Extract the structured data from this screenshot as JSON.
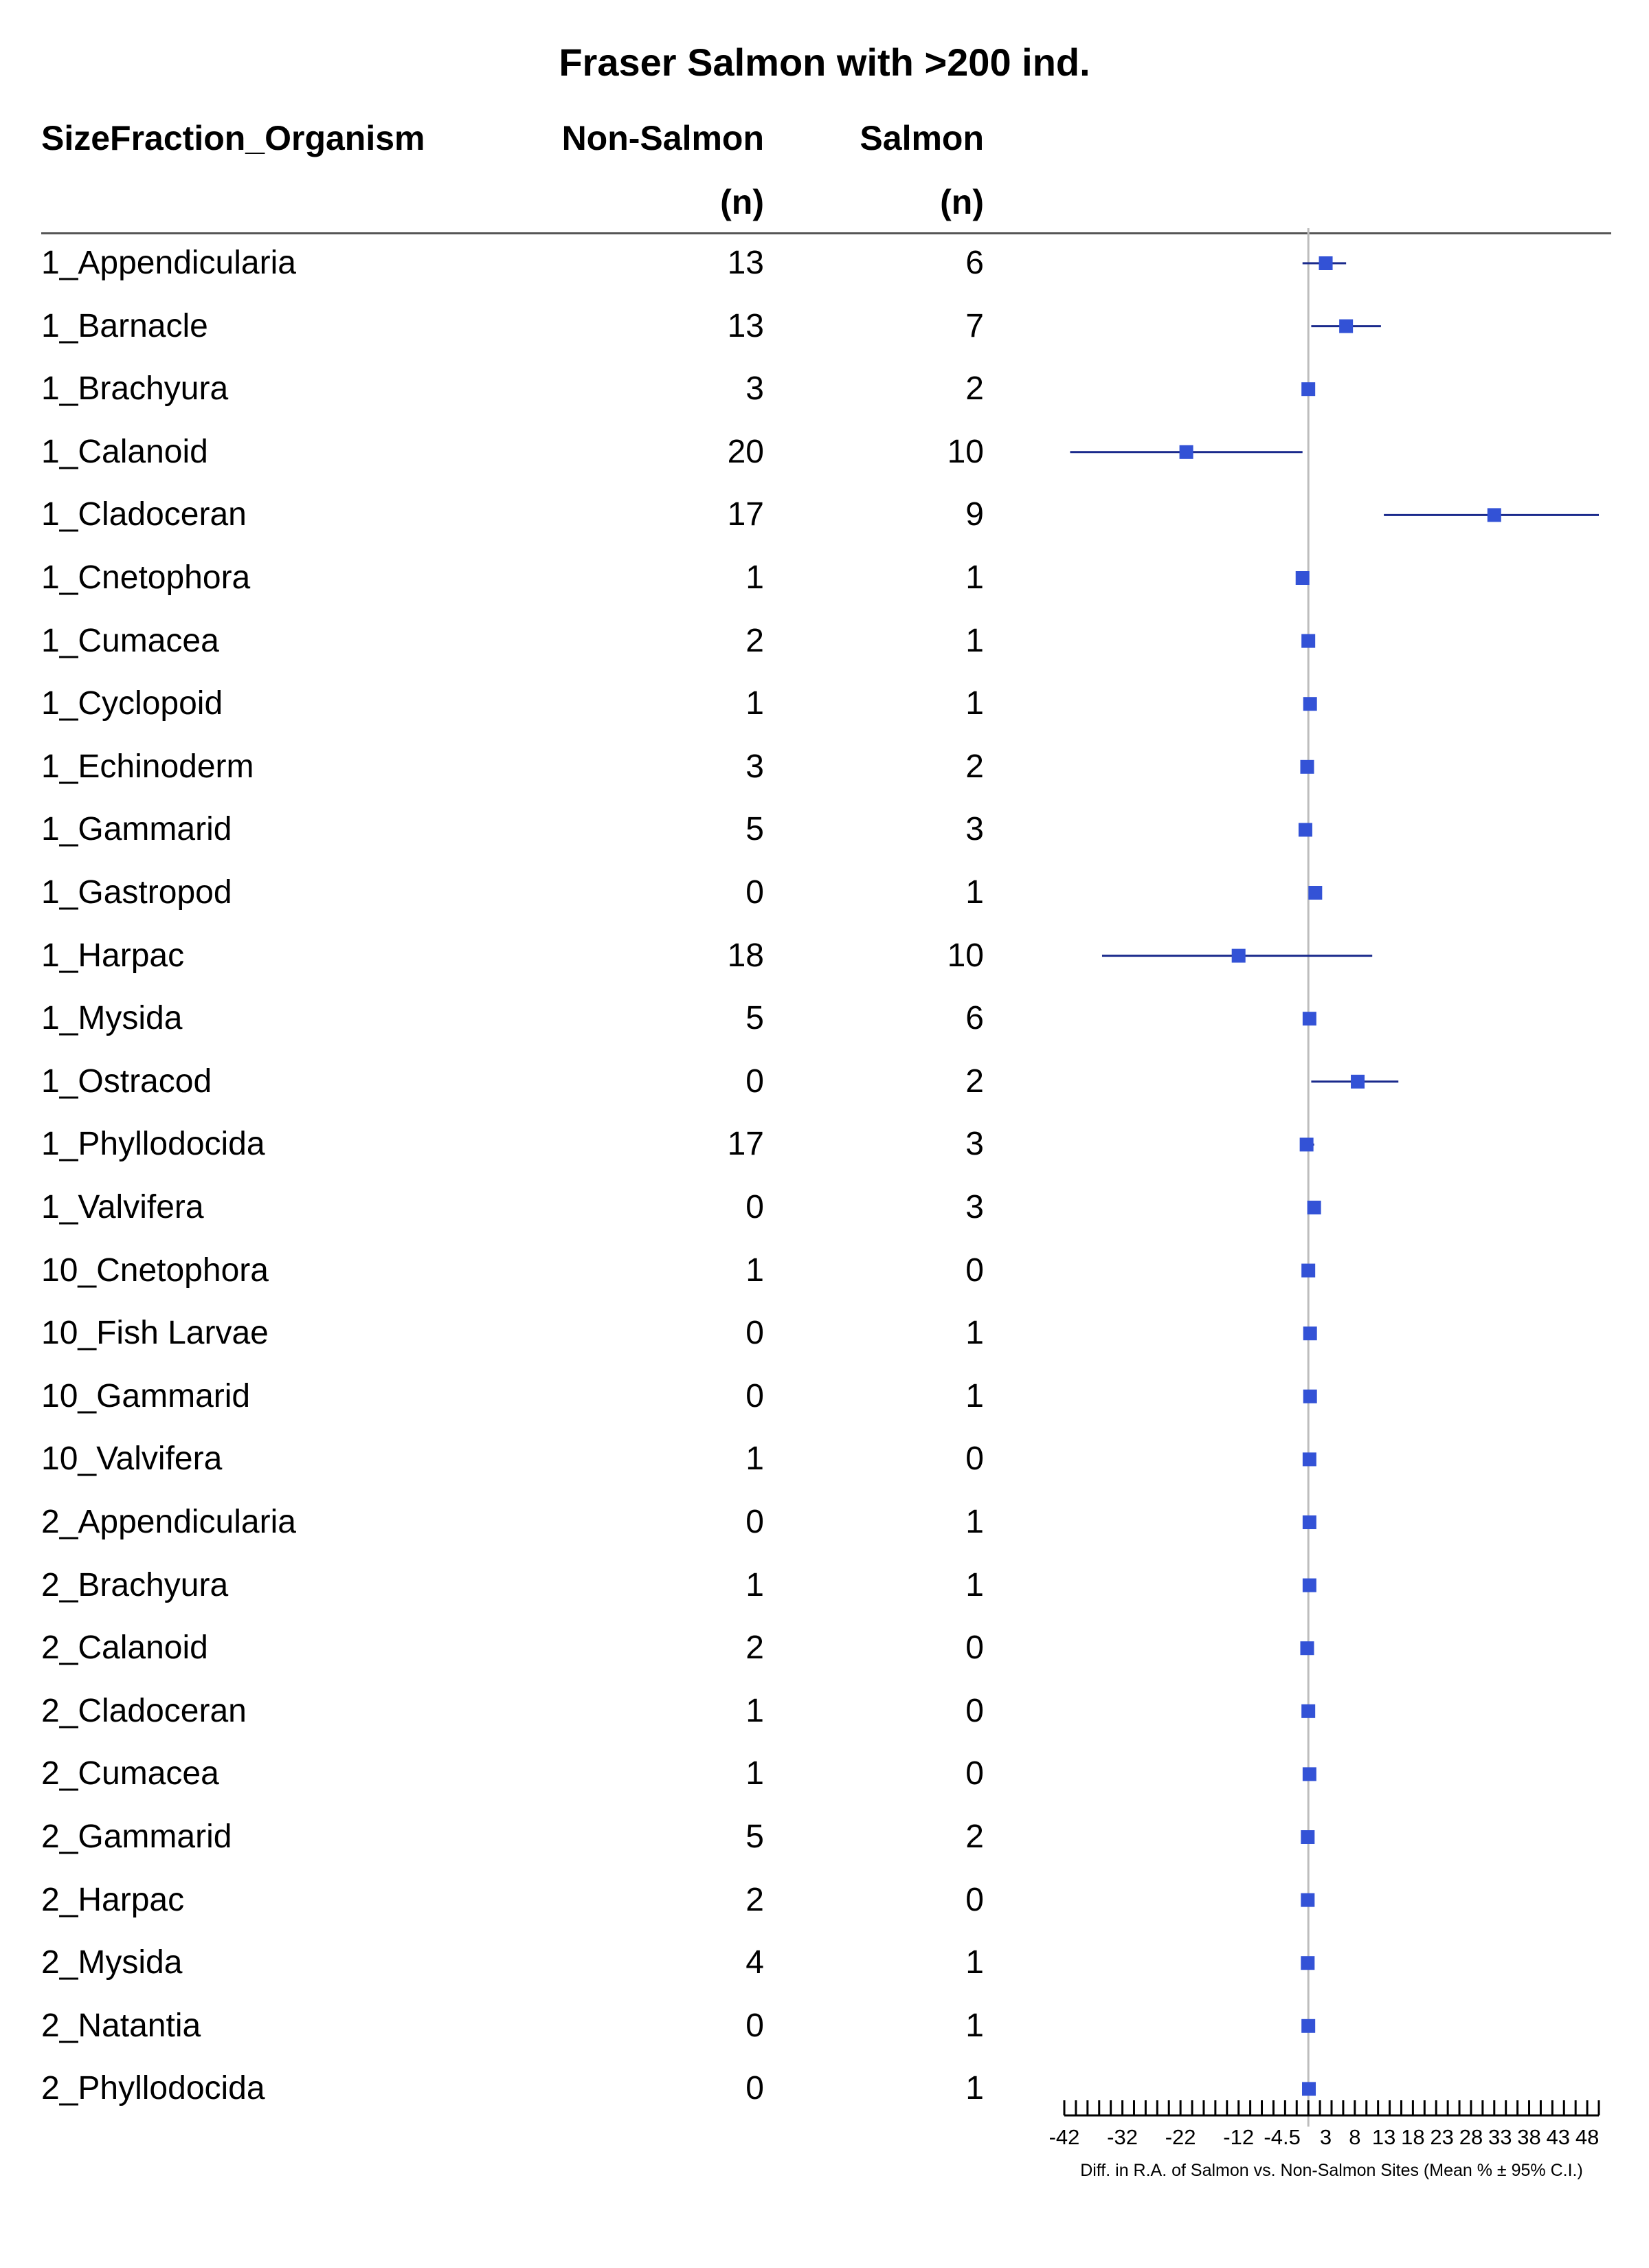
{
  "chart_data": {
    "type": "forest",
    "title": "Fraser Salmon with >200 ind.",
    "columns": {
      "name": "SizeFraction_Organism",
      "non_salmon": "Non-Salmon",
      "salmon": "Salmon",
      "n_label": "(n)"
    },
    "xlabel": "Diff. in R.A. of Salmon vs. Non-Salmon Sites (Mean % ± 95% C.I.)",
    "xlim": [
      -42,
      50
    ],
    "zero_line": 0,
    "tick_labels": [
      "-42",
      "-32",
      "-22",
      "-12",
      "-4.5",
      "3",
      "8",
      "13",
      "18",
      "23",
      "28",
      "33",
      "38",
      "43",
      "48"
    ],
    "tick_values": [
      -42,
      -32,
      -22,
      -12,
      -4.5,
      3,
      8,
      13,
      18,
      23,
      28,
      33,
      38,
      43,
      48
    ],
    "minor_tick_step": 2,
    "rows": [
      {
        "name": "1_Appendicularia",
        "non_salmon": "13",
        "salmon": "6",
        "mean": 3,
        "lo": -1,
        "hi": 6.5
      },
      {
        "name": "1_Barnacle",
        "non_salmon": "13",
        "salmon": "7",
        "mean": 6.5,
        "lo": 0.5,
        "hi": 12.5
      },
      {
        "name": "1_Brachyura",
        "non_salmon": "3",
        "salmon": "2",
        "mean": 0,
        "lo": null,
        "hi": null
      },
      {
        "name": "1_Calanoid",
        "non_salmon": "20",
        "salmon": "10",
        "mean": -21,
        "lo": -41,
        "hi": -1
      },
      {
        "name": "1_Cladoceran",
        "non_salmon": "17",
        "salmon": "9",
        "mean": 32,
        "lo": 13,
        "hi": 50
      },
      {
        "name": "1_Cnetophora",
        "non_salmon": "1",
        "salmon": "1",
        "mean": -1,
        "lo": null,
        "hi": null
      },
      {
        "name": "1_Cumacea",
        "non_salmon": "2",
        "salmon": "1",
        "mean": 0,
        "lo": null,
        "hi": null
      },
      {
        "name": "1_Cyclopoid",
        "non_salmon": "1",
        "salmon": "1",
        "mean": 0.3,
        "lo": null,
        "hi": null
      },
      {
        "name": "1_Echinoderm",
        "non_salmon": "3",
        "salmon": "2",
        "mean": -0.2,
        "lo": null,
        "hi": null
      },
      {
        "name": "1_Gammarid",
        "non_salmon": "5",
        "salmon": "3",
        "mean": -0.5,
        "lo": null,
        "hi": null
      },
      {
        "name": "1_Gastropod",
        "non_salmon": "0",
        "salmon": "1",
        "mean": 1.2,
        "lo": null,
        "hi": null
      },
      {
        "name": "1_Harpac",
        "non_salmon": "18",
        "salmon": "10",
        "mean": -12,
        "lo": -35.5,
        "hi": 11
      },
      {
        "name": "1_Mysida",
        "non_salmon": "5",
        "salmon": "6",
        "mean": 0.2,
        "lo": null,
        "hi": null
      },
      {
        "name": "1_Ostracod",
        "non_salmon": "0",
        "salmon": "2",
        "mean": 8.5,
        "lo": 0.5,
        "hi": 15.5
      },
      {
        "name": "1_Phyllodocida",
        "non_salmon": "17",
        "salmon": "3",
        "mean": -0.3,
        "lo": -1,
        "hi": 1
      },
      {
        "name": "1_Valvifera",
        "non_salmon": "0",
        "salmon": "3",
        "mean": 1,
        "lo": null,
        "hi": null
      },
      {
        "name": "10_Cnetophora",
        "non_salmon": "1",
        "salmon": "0",
        "mean": 0,
        "lo": null,
        "hi": null
      },
      {
        "name": "10_Fish Larvae",
        "non_salmon": "0",
        "salmon": "1",
        "mean": 0.3,
        "lo": null,
        "hi": null
      },
      {
        "name": "10_Gammarid",
        "non_salmon": "0",
        "salmon": "1",
        "mean": 0.3,
        "lo": null,
        "hi": null
      },
      {
        "name": "10_Valvifera",
        "non_salmon": "1",
        "salmon": "0",
        "mean": 0.2,
        "lo": null,
        "hi": null
      },
      {
        "name": "2_Appendicularia",
        "non_salmon": "0",
        "salmon": "1",
        "mean": 0.2,
        "lo": null,
        "hi": null
      },
      {
        "name": "2_Brachyura",
        "non_salmon": "1",
        "salmon": "1",
        "mean": 0.2,
        "lo": null,
        "hi": null
      },
      {
        "name": "2_Calanoid",
        "non_salmon": "2",
        "salmon": "0",
        "mean": -0.2,
        "lo": null,
        "hi": null
      },
      {
        "name": "2_Cladoceran",
        "non_salmon": "1",
        "salmon": "0",
        "mean": 0,
        "lo": null,
        "hi": null
      },
      {
        "name": "2_Cumacea",
        "non_salmon": "1",
        "salmon": "0",
        "mean": 0.2,
        "lo": null,
        "hi": null
      },
      {
        "name": "2_Gammarid",
        "non_salmon": "5",
        "salmon": "2",
        "mean": -0.1,
        "lo": null,
        "hi": null
      },
      {
        "name": "2_Harpac",
        "non_salmon": "2",
        "salmon": "0",
        "mean": -0.1,
        "lo": null,
        "hi": null
      },
      {
        "name": "2_Mysida",
        "non_salmon": "4",
        "salmon": "1",
        "mean": -0.1,
        "lo": null,
        "hi": null
      },
      {
        "name": "2_Natantia",
        "non_salmon": "0",
        "salmon": "1",
        "mean": 0,
        "lo": null,
        "hi": null
      },
      {
        "name": "2_Phyllodocida",
        "non_salmon": "0",
        "salmon": "1",
        "mean": 0.1,
        "lo": null,
        "hi": null
      }
    ],
    "colors": {
      "marker": "#3352d6",
      "ci_line": "#1a2a8c",
      "zero_line": "#bdbdbd",
      "axis": "#000000"
    }
  }
}
